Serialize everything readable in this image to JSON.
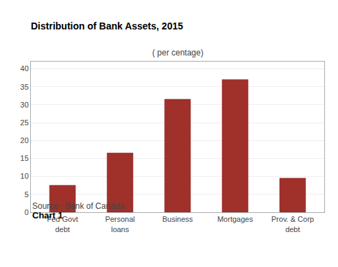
{
  "chart_data": {
    "type": "bar",
    "chart_label": "Chart 1",
    "title": "Distribution of Bank Assets, 2015",
    "subtitle": "( per centage)",
    "source": "Source : Bank of Canada",
    "categories": [
      "Fed Govt\ndebt",
      "Personal\nloans",
      "Business",
      "Mortgages",
      "Prov. & Corp\ndebt"
    ],
    "values": [
      7.5,
      16.5,
      31.5,
      37.0,
      9.5
    ],
    "color": "#A0302A",
    "ylim": [
      0,
      42
    ],
    "yticks": [
      0,
      5,
      10,
      15,
      20,
      25,
      30,
      35,
      40
    ],
    "grid": true
  }
}
